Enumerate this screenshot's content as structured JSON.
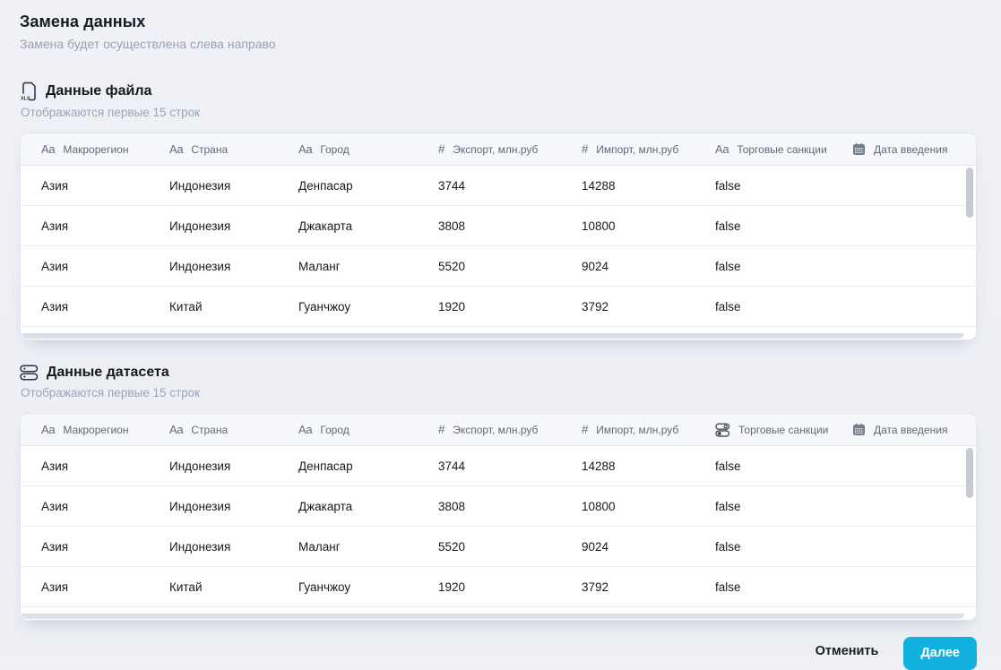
{
  "page": {
    "title": "Замена данных",
    "subtitle": "Замена будет осуществлена слева направо"
  },
  "column_type_glyphs": {
    "text": "Aa",
    "number": "#"
  },
  "sections": [
    {
      "icon": "xls-file-icon",
      "title": "Данные файла",
      "note": "Отображаются первые 15 строк",
      "columns": [
        {
          "type": "text",
          "label": "Макрорегион"
        },
        {
          "type": "text",
          "label": "Страна"
        },
        {
          "type": "text",
          "label": "Город"
        },
        {
          "type": "number",
          "label": "Экспорт, млн.руб"
        },
        {
          "type": "number",
          "label": "Импорт, млн,руб"
        },
        {
          "type": "text",
          "label": "Торговые санкции"
        },
        {
          "type": "date",
          "label": "Дата введения"
        }
      ],
      "rows": [
        [
          "Азия",
          "Индонезия",
          "Денпасар",
          "3744",
          "14288",
          "false",
          ""
        ],
        [
          "Азия",
          "Индонезия",
          "Джакарта",
          "3808",
          "10800",
          "false",
          ""
        ],
        [
          "Азия",
          "Индонезия",
          "Маланг",
          "5520",
          "9024",
          "false",
          ""
        ],
        [
          "Азия",
          "Китай",
          "Гуанчжоу",
          "1920",
          "3792",
          "false",
          ""
        ]
      ]
    },
    {
      "icon": "dataset-icon",
      "title": "Данные датасета",
      "note": "Отображаются первые 15 строк",
      "columns": [
        {
          "type": "text",
          "label": "Макрорегион"
        },
        {
          "type": "text",
          "label": "Страна"
        },
        {
          "type": "text",
          "label": "Город"
        },
        {
          "type": "number",
          "label": "Экспорт, млн.руб"
        },
        {
          "type": "number",
          "label": "Импорт, млн,руб"
        },
        {
          "type": "boolean",
          "label": "Торговые санкции"
        },
        {
          "type": "date",
          "label": "Дата введения"
        }
      ],
      "rows": [
        [
          "Азия",
          "Индонезия",
          "Денпасар",
          "3744",
          "14288",
          "false",
          ""
        ],
        [
          "Азия",
          "Индонезия",
          "Джакарта",
          "3808",
          "10800",
          "false",
          ""
        ],
        [
          "Азия",
          "Индонезия",
          "Маланг",
          "5520",
          "9024",
          "false",
          ""
        ],
        [
          "Азия",
          "Китай",
          "Гуанчжоу",
          "1920",
          "3792",
          "false",
          ""
        ]
      ]
    }
  ],
  "footer": {
    "cancel_label": "Отменить",
    "next_label": "Далее"
  },
  "colors": {
    "accent": "#10b1de",
    "background": "#eef0f5",
    "header_text": "#5e6878",
    "body_text": "#16191f",
    "muted_text": "#9aa1b5"
  }
}
